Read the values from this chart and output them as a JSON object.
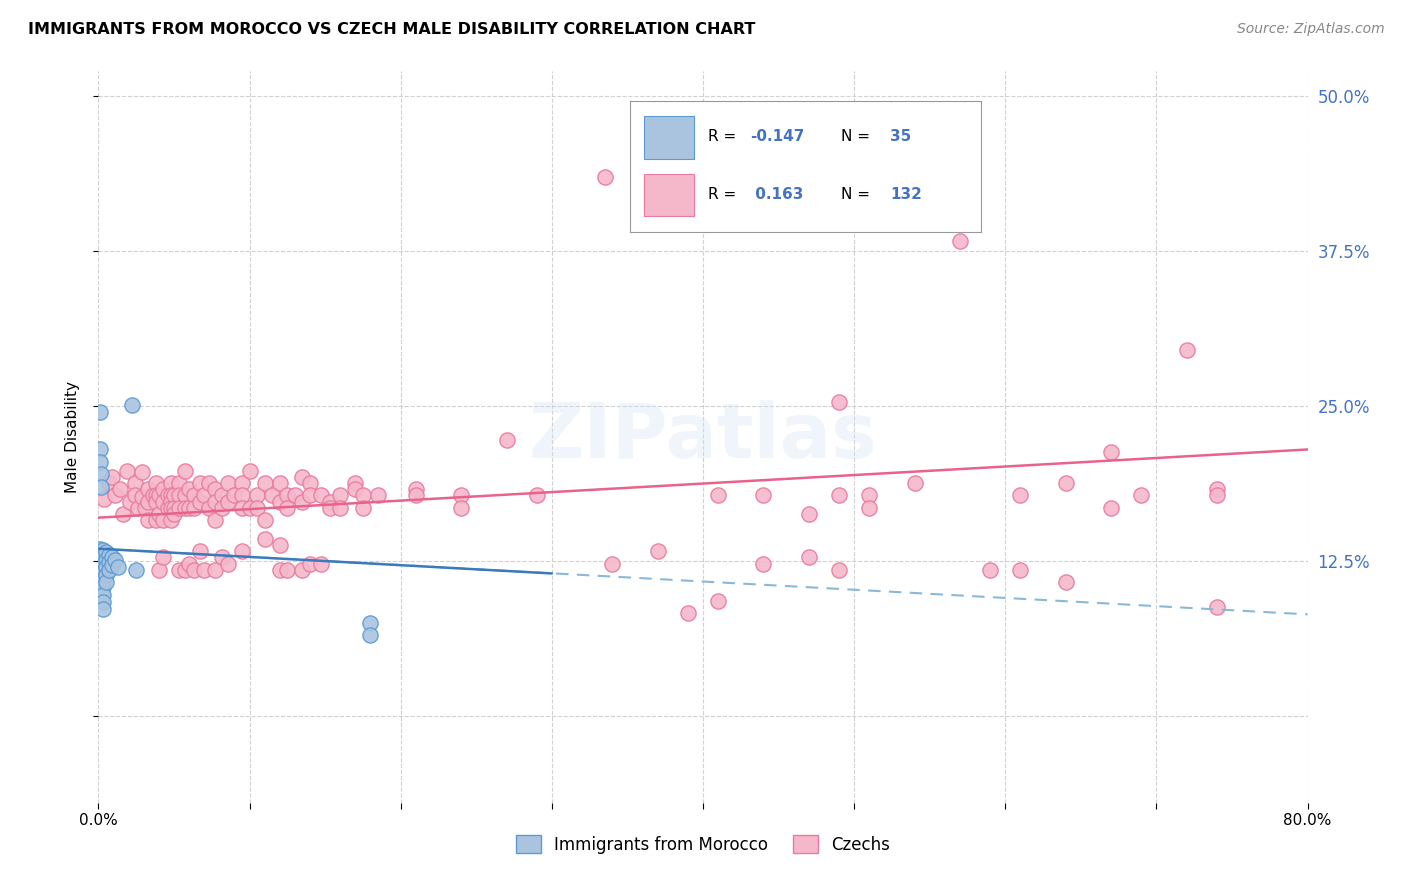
{
  "title": "IMMIGRANTS FROM MOROCCO VS CZECH MALE DISABILITY CORRELATION CHART",
  "source": "Source: ZipAtlas.com",
  "ylabel": "Male Disability",
  "xlim": [
    0.0,
    0.8
  ],
  "ylim": [
    -0.07,
    0.52
  ],
  "color_morocco": "#aac4e0",
  "color_czechs": "#f5b8ca",
  "color_morocco_edge": "#5b9bd5",
  "color_czechs_edge": "#e87a9f",
  "color_czechs_line": "#e8628a",
  "color_morocco_line_solid": "#3a7abf",
  "color_morocco_line_dashed": "#8ab8d8",
  "watermark": "ZIPatlas",
  "czech_line_x0": 0.0,
  "czech_line_y0": 0.16,
  "czech_line_x1": 0.8,
  "czech_line_y1": 0.215,
  "morocco_line_solid_x0": 0.0,
  "morocco_line_solid_y0": 0.135,
  "morocco_line_solid_x1": 0.3,
  "morocco_line_solid_y1": 0.115,
  "morocco_line_dashed_x0": 0.0,
  "morocco_line_dashed_y0": 0.135,
  "morocco_line_dashed_x1": 0.8,
  "morocco_line_dashed_y1": 0.082,
  "morocco_data": [
    [
      0.001,
      0.135
    ],
    [
      0.001,
      0.128
    ],
    [
      0.001,
      0.122
    ],
    [
      0.001,
      0.116
    ],
    [
      0.001,
      0.109
    ],
    [
      0.003,
      0.134
    ],
    [
      0.003,
      0.128
    ],
    [
      0.003,
      0.122
    ],
    [
      0.003,
      0.116
    ],
    [
      0.003,
      0.11
    ],
    [
      0.003,
      0.104
    ],
    [
      0.003,
      0.098
    ],
    [
      0.003,
      0.092
    ],
    [
      0.003,
      0.086
    ],
    [
      0.005,
      0.132
    ],
    [
      0.005,
      0.126
    ],
    [
      0.005,
      0.12
    ],
    [
      0.005,
      0.114
    ],
    [
      0.005,
      0.108
    ],
    [
      0.007,
      0.13
    ],
    [
      0.007,
      0.124
    ],
    [
      0.007,
      0.118
    ],
    [
      0.009,
      0.128
    ],
    [
      0.009,
      0.122
    ],
    [
      0.011,
      0.126
    ],
    [
      0.013,
      0.12
    ],
    [
      0.001,
      0.245
    ],
    [
      0.001,
      0.215
    ],
    [
      0.001,
      0.205
    ],
    [
      0.002,
      0.195
    ],
    [
      0.002,
      0.185
    ],
    [
      0.022,
      0.251
    ],
    [
      0.025,
      0.118
    ],
    [
      0.18,
      0.075
    ],
    [
      0.18,
      0.065
    ]
  ],
  "czechs_data": [
    [
      0.004,
      0.175
    ],
    [
      0.007,
      0.188
    ],
    [
      0.009,
      0.193
    ],
    [
      0.011,
      0.178
    ],
    [
      0.014,
      0.183
    ],
    [
      0.016,
      0.163
    ],
    [
      0.019,
      0.198
    ],
    [
      0.021,
      0.173
    ],
    [
      0.024,
      0.188
    ],
    [
      0.024,
      0.178
    ],
    [
      0.026,
      0.168
    ],
    [
      0.029,
      0.197
    ],
    [
      0.029,
      0.177
    ],
    [
      0.031,
      0.168
    ],
    [
      0.033,
      0.183
    ],
    [
      0.033,
      0.173
    ],
    [
      0.033,
      0.158
    ],
    [
      0.036,
      0.178
    ],
    [
      0.038,
      0.188
    ],
    [
      0.038,
      0.178
    ],
    [
      0.038,
      0.173
    ],
    [
      0.038,
      0.158
    ],
    [
      0.04,
      0.178
    ],
    [
      0.04,
      0.163
    ],
    [
      0.04,
      0.118
    ],
    [
      0.043,
      0.183
    ],
    [
      0.043,
      0.173
    ],
    [
      0.043,
      0.158
    ],
    [
      0.043,
      0.128
    ],
    [
      0.046,
      0.178
    ],
    [
      0.046,
      0.168
    ],
    [
      0.048,
      0.188
    ],
    [
      0.048,
      0.178
    ],
    [
      0.048,
      0.173
    ],
    [
      0.048,
      0.168
    ],
    [
      0.048,
      0.158
    ],
    [
      0.05,
      0.178
    ],
    [
      0.05,
      0.168
    ],
    [
      0.05,
      0.163
    ],
    [
      0.053,
      0.188
    ],
    [
      0.053,
      0.178
    ],
    [
      0.053,
      0.168
    ],
    [
      0.053,
      0.118
    ],
    [
      0.057,
      0.198
    ],
    [
      0.057,
      0.178
    ],
    [
      0.057,
      0.168
    ],
    [
      0.057,
      0.118
    ],
    [
      0.06,
      0.183
    ],
    [
      0.06,
      0.168
    ],
    [
      0.06,
      0.123
    ],
    [
      0.063,
      0.178
    ],
    [
      0.063,
      0.168
    ],
    [
      0.063,
      0.118
    ],
    [
      0.067,
      0.188
    ],
    [
      0.067,
      0.173
    ],
    [
      0.067,
      0.133
    ],
    [
      0.07,
      0.178
    ],
    [
      0.07,
      0.118
    ],
    [
      0.073,
      0.188
    ],
    [
      0.073,
      0.168
    ],
    [
      0.077,
      0.183
    ],
    [
      0.077,
      0.173
    ],
    [
      0.077,
      0.158
    ],
    [
      0.077,
      0.118
    ],
    [
      0.082,
      0.178
    ],
    [
      0.082,
      0.168
    ],
    [
      0.082,
      0.128
    ],
    [
      0.086,
      0.188
    ],
    [
      0.086,
      0.173
    ],
    [
      0.086,
      0.123
    ],
    [
      0.09,
      0.178
    ],
    [
      0.095,
      0.188
    ],
    [
      0.095,
      0.178
    ],
    [
      0.095,
      0.168
    ],
    [
      0.095,
      0.133
    ],
    [
      0.1,
      0.198
    ],
    [
      0.1,
      0.168
    ],
    [
      0.105,
      0.178
    ],
    [
      0.105,
      0.168
    ],
    [
      0.11,
      0.188
    ],
    [
      0.11,
      0.158
    ],
    [
      0.11,
      0.143
    ],
    [
      0.115,
      0.178
    ],
    [
      0.12,
      0.188
    ],
    [
      0.12,
      0.173
    ],
    [
      0.12,
      0.138
    ],
    [
      0.12,
      0.118
    ],
    [
      0.125,
      0.178
    ],
    [
      0.125,
      0.168
    ],
    [
      0.125,
      0.118
    ],
    [
      0.13,
      0.178
    ],
    [
      0.135,
      0.193
    ],
    [
      0.135,
      0.173
    ],
    [
      0.135,
      0.118
    ],
    [
      0.14,
      0.188
    ],
    [
      0.14,
      0.178
    ],
    [
      0.14,
      0.123
    ],
    [
      0.147,
      0.178
    ],
    [
      0.147,
      0.123
    ],
    [
      0.153,
      0.173
    ],
    [
      0.153,
      0.168
    ],
    [
      0.16,
      0.178
    ],
    [
      0.16,
      0.168
    ],
    [
      0.17,
      0.188
    ],
    [
      0.17,
      0.183
    ],
    [
      0.175,
      0.178
    ],
    [
      0.175,
      0.168
    ],
    [
      0.185,
      0.178
    ],
    [
      0.21,
      0.183
    ],
    [
      0.21,
      0.178
    ],
    [
      0.24,
      0.178
    ],
    [
      0.24,
      0.168
    ],
    [
      0.27,
      0.223
    ],
    [
      0.29,
      0.178
    ],
    [
      0.335,
      0.435
    ],
    [
      0.34,
      0.123
    ],
    [
      0.37,
      0.133
    ],
    [
      0.39,
      0.083
    ],
    [
      0.41,
      0.178
    ],
    [
      0.41,
      0.093
    ],
    [
      0.44,
      0.178
    ],
    [
      0.44,
      0.123
    ],
    [
      0.47,
      0.163
    ],
    [
      0.47,
      0.128
    ],
    [
      0.49,
      0.253
    ],
    [
      0.49,
      0.178
    ],
    [
      0.49,
      0.118
    ],
    [
      0.51,
      0.178
    ],
    [
      0.51,
      0.168
    ],
    [
      0.54,
      0.188
    ],
    [
      0.57,
      0.383
    ],
    [
      0.59,
      0.118
    ],
    [
      0.61,
      0.178
    ],
    [
      0.61,
      0.118
    ],
    [
      0.64,
      0.188
    ],
    [
      0.64,
      0.108
    ],
    [
      0.67,
      0.213
    ],
    [
      0.67,
      0.168
    ],
    [
      0.69,
      0.178
    ],
    [
      0.72,
      0.295
    ],
    [
      0.74,
      0.183
    ],
    [
      0.74,
      0.178
    ],
    [
      0.74,
      0.088
    ]
  ]
}
